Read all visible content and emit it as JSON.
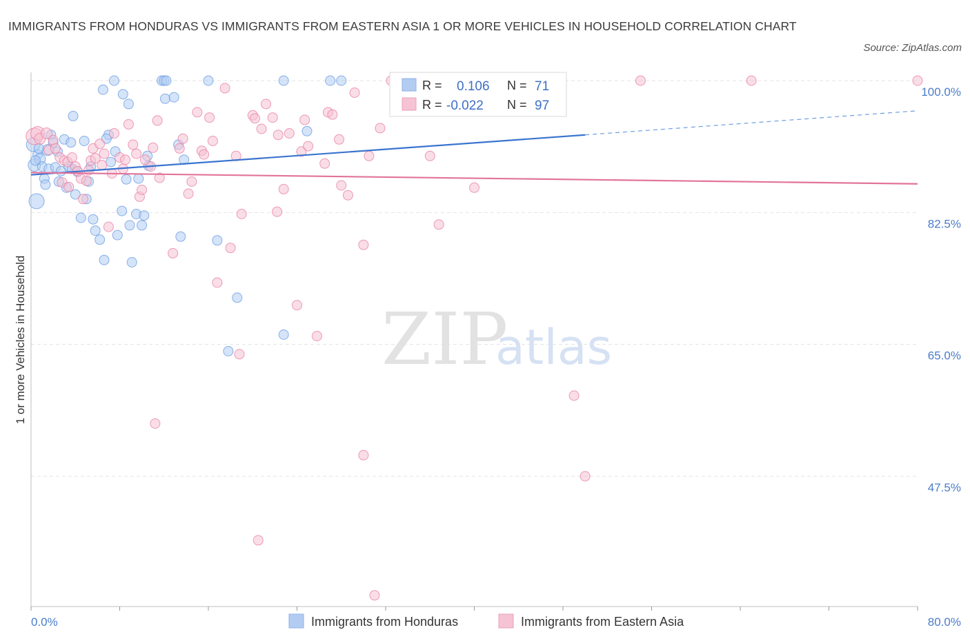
{
  "header": {
    "title": "IMMIGRANTS FROM HONDURAS VS IMMIGRANTS FROM EASTERN ASIA 1 OR MORE VEHICLES IN HOUSEHOLD CORRELATION CHART",
    "source": "Source: ZipAtlas.com"
  },
  "watermark": {
    "zip": "ZIP",
    "atlas": "atlas"
  },
  "legend_box": {
    "rows": [
      {
        "r_label": "R =",
        "r_value": "0.106",
        "n_label": "N =",
        "n_value": "71"
      },
      {
        "r_label": "R =",
        "r_value": "-0.022",
        "n_label": "N =",
        "n_value": "97"
      }
    ]
  },
  "chart_data": {
    "type": "scatter",
    "title": "IMMIGRANTS FROM HONDURAS VS IMMIGRANTS FROM EASTERN ASIA 1 OR MORE VEHICLES IN HOUSEHOLD CORRELATION CHART",
    "xlabel": "",
    "ylabel": "1 or more Vehicles in Household",
    "xlim": [
      0,
      80
    ],
    "ylim": [
      30,
      102
    ],
    "x_tick_labels": [
      {
        "value": 0,
        "label": "0.0%"
      },
      {
        "value": 80,
        "label": "80.0%"
      }
    ],
    "y_tick_labels": [
      {
        "value": 100,
        "label": "100.0%"
      },
      {
        "value": 82.5,
        "label": "82.5%"
      },
      {
        "value": 65,
        "label": "65.0%"
      },
      {
        "value": 47.5,
        "label": "47.5%"
      }
    ],
    "grid": true,
    "legend_position": "bottom-center",
    "series": [
      {
        "name": "Immigrants from Honduras",
        "color": "#6b9de3",
        "fill": "#b3cdf2",
        "r": 0.106,
        "n": 71,
        "trend": {
          "x0": 0,
          "y0": 87.5,
          "x1": 50,
          "y1": 92.8,
          "dash_to_x": 80,
          "dash_to_y": 96
        },
        "points": [
          [
            0.2,
            91.5,
            10
          ],
          [
            0.3,
            88.8,
            9
          ],
          [
            0.5,
            84,
            11
          ],
          [
            0.6,
            90.2,
            7
          ],
          [
            0.8,
            89.6,
            8
          ],
          [
            1,
            88.6,
            7
          ],
          [
            1.2,
            87,
            7
          ],
          [
            1.3,
            86.2,
            7
          ],
          [
            1.5,
            90.8,
            8
          ],
          [
            1.6,
            88.3,
            7
          ],
          [
            1.8,
            92.8,
            7
          ],
          [
            2,
            91.8,
            7
          ],
          [
            2.2,
            88.5,
            7
          ],
          [
            2.5,
            86.6,
            7
          ],
          [
            2.7,
            88,
            7
          ],
          [
            3,
            92.2,
            7
          ],
          [
            3.2,
            85.8,
            7
          ],
          [
            3.4,
            88.6,
            7
          ],
          [
            3.6,
            91.8,
            7
          ],
          [
            3.8,
            95.3,
            7
          ],
          [
            4,
            84.9,
            7
          ],
          [
            4.2,
            87.9,
            7
          ],
          [
            4.5,
            81.8,
            7
          ],
          [
            4.8,
            92,
            7
          ],
          [
            5,
            84.3,
            7
          ],
          [
            5.2,
            86.6,
            7
          ],
          [
            5.4,
            88.6,
            7
          ],
          [
            5.6,
            81.6,
            7
          ],
          [
            5.8,
            80.1,
            7
          ],
          [
            6.2,
            78.9,
            7
          ],
          [
            6.5,
            98.8,
            7
          ],
          [
            6.6,
            76.2,
            7
          ],
          [
            7,
            92.8,
            7
          ],
          [
            7.2,
            89.2,
            7
          ],
          [
            7.5,
            100,
            7
          ],
          [
            7.6,
            90.6,
            7
          ],
          [
            7.8,
            79.5,
            7
          ],
          [
            8.2,
            82.7,
            7
          ],
          [
            8.3,
            98.2,
            7
          ],
          [
            8.6,
            86.9,
            7
          ],
          [
            8.8,
            96.9,
            7
          ],
          [
            8.9,
            80.8,
            7
          ],
          [
            9.1,
            75.9,
            7
          ],
          [
            9.5,
            82.3,
            7
          ],
          [
            9.7,
            87,
            7
          ],
          [
            10,
            80.8,
            7
          ],
          [
            10.2,
            82.1,
            7
          ],
          [
            10.5,
            90,
            7
          ],
          [
            10.6,
            88.7,
            7
          ],
          [
            11.8,
            100,
            7
          ],
          [
            12,
            100,
            7
          ],
          [
            12.1,
            97.6,
            7
          ],
          [
            12.2,
            100,
            7
          ],
          [
            12.9,
            97.8,
            7
          ],
          [
            13.3,
            91.5,
            7
          ],
          [
            13.8,
            89.5,
            7
          ],
          [
            13.5,
            79.3,
            7
          ],
          [
            16,
            100,
            7
          ],
          [
            16.8,
            78.8,
            7
          ],
          [
            18.6,
            71.2,
            7
          ],
          [
            17.8,
            64.1,
            7
          ],
          [
            22.8,
            100,
            7
          ],
          [
            22.8,
            66.3,
            7
          ],
          [
            24.9,
            93.3,
            7
          ],
          [
            27,
            100,
            7
          ],
          [
            28,
            100,
            7
          ],
          [
            0.4,
            89.4,
            7
          ],
          [
            0.7,
            91,
            7
          ],
          [
            2.4,
            90.6,
            7
          ],
          [
            3.7,
            88.3,
            7
          ],
          [
            6.8,
            92.3,
            7
          ]
        ]
      },
      {
        "name": "Immigrants from Eastern Asia",
        "color": "#e882a5",
        "fill": "#f6c3d4",
        "r": -0.022,
        "n": 97,
        "trend": {
          "x0": 0,
          "y0": 87.8,
          "x1": 80,
          "y1": 86.3
        },
        "points": [
          [
            0.3,
            92.6,
            12
          ],
          [
            0.6,
            93,
            10
          ],
          [
            0.8,
            92.3,
            8
          ],
          [
            1.4,
            93,
            8
          ],
          [
            1.6,
            90.8,
            7
          ],
          [
            2,
            92.1,
            7
          ],
          [
            2.2,
            91,
            7
          ],
          [
            2.6,
            89.8,
            7
          ],
          [
            2.8,
            86.5,
            7
          ],
          [
            3,
            89.4,
            7
          ],
          [
            3.3,
            89.2,
            7
          ],
          [
            3.4,
            85.9,
            7
          ],
          [
            3.7,
            89.8,
            7
          ],
          [
            4,
            88.6,
            7
          ],
          [
            4.2,
            88,
            7
          ],
          [
            4.5,
            87,
            7
          ],
          [
            4.7,
            84.3,
            7
          ],
          [
            5,
            86.7,
            7
          ],
          [
            5.2,
            88.1,
            7
          ],
          [
            5.4,
            89.4,
            7
          ],
          [
            5.6,
            91,
            7
          ],
          [
            5.8,
            89.7,
            7
          ],
          [
            6.2,
            91.6,
            7
          ],
          [
            6.4,
            88.8,
            7
          ],
          [
            6.6,
            90.3,
            7
          ],
          [
            7,
            80.6,
            7
          ],
          [
            7.3,
            87.7,
            7
          ],
          [
            7.5,
            93,
            7
          ],
          [
            8,
            89.8,
            7
          ],
          [
            8.3,
            88.3,
            7
          ],
          [
            8.5,
            89.5,
            7
          ],
          [
            8.8,
            94.2,
            7
          ],
          [
            9.2,
            91.5,
            7
          ],
          [
            9.5,
            90.3,
            7
          ],
          [
            9.8,
            84.6,
            7
          ],
          [
            10,
            85.5,
            7
          ],
          [
            10.3,
            89.5,
            7
          ],
          [
            10.8,
            88.6,
            7
          ],
          [
            11,
            91.1,
            7
          ],
          [
            11.4,
            94.7,
            7
          ],
          [
            11.6,
            87.1,
            7
          ],
          [
            12.8,
            77.1,
            7
          ],
          [
            13.4,
            91,
            7
          ],
          [
            13.7,
            92.3,
            7
          ],
          [
            14.2,
            85,
            7
          ],
          [
            14.5,
            86.6,
            7
          ],
          [
            15,
            95.8,
            7
          ],
          [
            15.4,
            90.7,
            7
          ],
          [
            15.6,
            90.2,
            7
          ],
          [
            16.1,
            95.1,
            7
          ],
          [
            16.4,
            92,
            7
          ],
          [
            16.8,
            73.2,
            7
          ],
          [
            17.5,
            99,
            7
          ],
          [
            18,
            77.8,
            7
          ],
          [
            18.5,
            90,
            7
          ],
          [
            18.8,
            63.7,
            7
          ],
          [
            19,
            82.3,
            7
          ],
          [
            20,
            95.4,
            7
          ],
          [
            20.2,
            95,
            7
          ],
          [
            20.8,
            93.6,
            7
          ],
          [
            21.2,
            96.9,
            7
          ],
          [
            21.8,
            95.1,
            7
          ],
          [
            22.2,
            82.6,
            7
          ],
          [
            22.3,
            92.8,
            7
          ],
          [
            22.8,
            85.6,
            7
          ],
          [
            23.3,
            93,
            7
          ],
          [
            24.4,
            90.6,
            7
          ],
          [
            24.7,
            94.8,
            7
          ],
          [
            25,
            91.3,
            7
          ],
          [
            25.8,
            66.1,
            7
          ],
          [
            26.5,
            89,
            7
          ],
          [
            26.8,
            95.8,
            7
          ],
          [
            27.2,
            95.5,
            7
          ],
          [
            27.8,
            92.2,
            7
          ],
          [
            28,
            86.1,
            7
          ],
          [
            28.6,
            84.8,
            7
          ],
          [
            29.2,
            98.4,
            7
          ],
          [
            30,
            78.2,
            7
          ],
          [
            30.5,
            90,
            7
          ],
          [
            31.5,
            93.7,
            7
          ],
          [
            32.5,
            100,
            7
          ],
          [
            33,
            100,
            7
          ],
          [
            36.5,
            100,
            7
          ],
          [
            36,
            90,
            7
          ],
          [
            36.8,
            80.9,
            7
          ],
          [
            38,
            100,
            7
          ],
          [
            40,
            85.8,
            7
          ],
          [
            49,
            58.2,
            7
          ],
          [
            50,
            47.5,
            7
          ],
          [
            55,
            100,
            7
          ],
          [
            65,
            100,
            7
          ],
          [
            80,
            100,
            7
          ],
          [
            30,
            50.3,
            7
          ],
          [
            20.5,
            39,
            7
          ],
          [
            24,
            70.2,
            7
          ],
          [
            11.2,
            54.5,
            7
          ],
          [
            31,
            31.7,
            7
          ]
        ]
      }
    ]
  }
}
